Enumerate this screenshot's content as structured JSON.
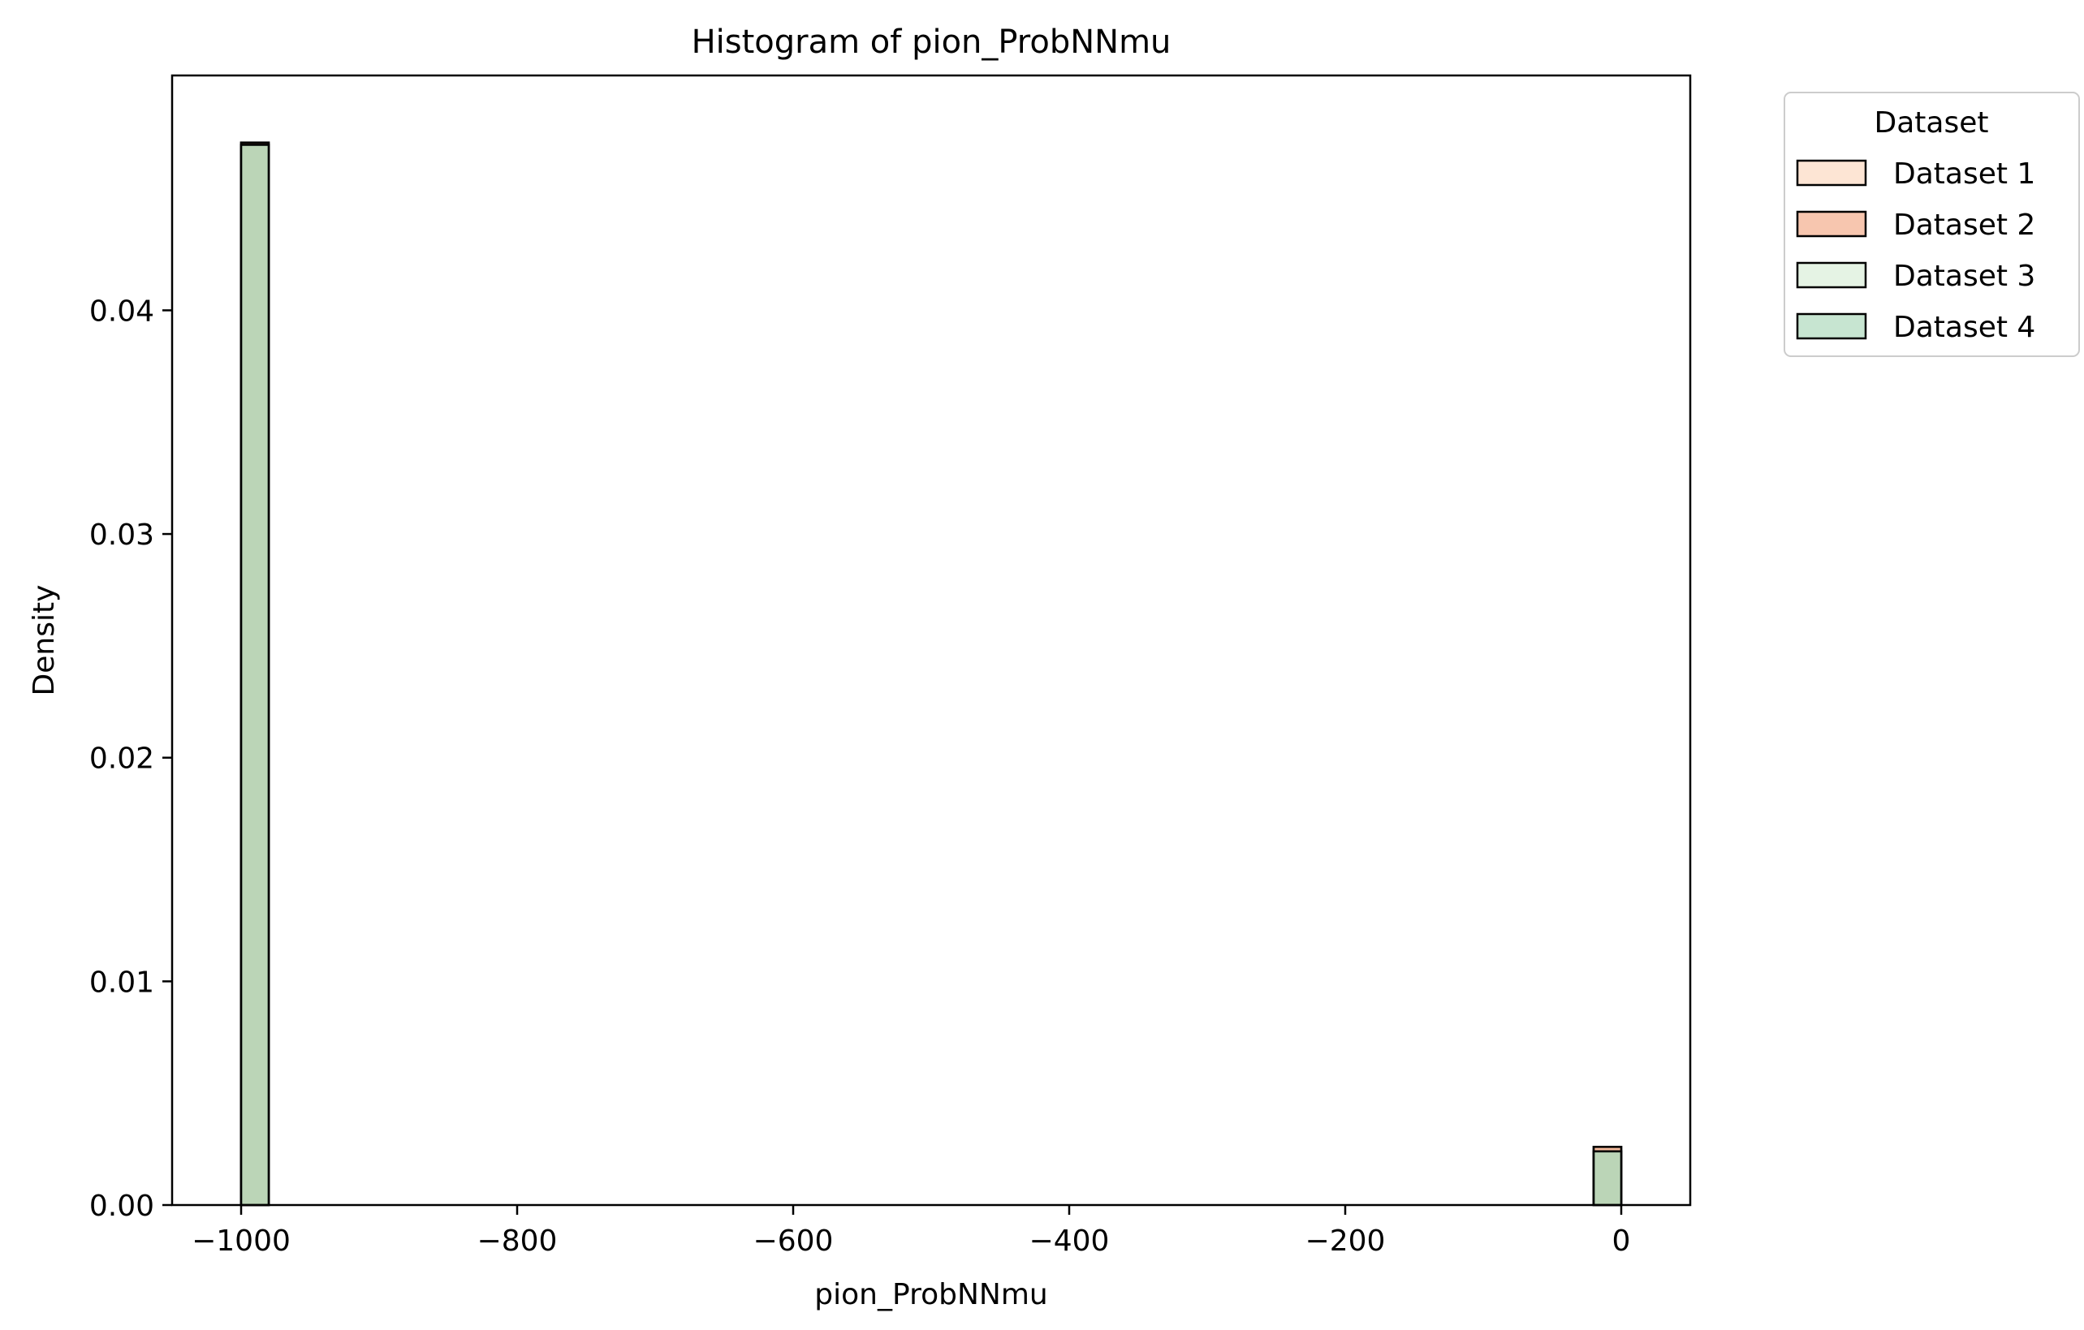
{
  "chart_data": {
    "type": "bar",
    "title": "Histogram of pion_ProbNNmu",
    "xlabel": "pion_ProbNNmu",
    "ylabel": "Density",
    "xlim": [
      -1050,
      50
    ],
    "ylim": [
      0,
      0.0505
    ],
    "xticks": [
      -1000,
      -800,
      -600,
      -400,
      -200,
      0
    ],
    "xtick_labels": [
      "−1000",
      "−800",
      "−600",
      "−400",
      "−200",
      "0"
    ],
    "yticks": [
      0,
      0.01,
      0.02,
      0.03,
      0.04
    ],
    "ytick_labels": [
      "0.00",
      "0.01",
      "0.02",
      "0.03",
      "0.04"
    ],
    "grid": false,
    "legend": {
      "title": "Dataset",
      "placement": "outside-top-right"
    },
    "bin_width": 20,
    "series": [
      {
        "name": "Dataset 1",
        "color": "#fbd3b8",
        "bins": [
          {
            "x0": -1000,
            "x1": -980,
            "density": 0.0475
          },
          {
            "x0": -20,
            "x1": 0,
            "density": 0.0026
          }
        ]
      },
      {
        "name": "Dataset 2",
        "color": "#f2a07a",
        "bins": [
          {
            "x0": -1000,
            "x1": -980,
            "density": 0.0475
          },
          {
            "x0": -20,
            "x1": 0,
            "density": 0.0026
          }
        ]
      },
      {
        "name": "Dataset 3",
        "color": "#d4ebd2",
        "bins": [
          {
            "x0": -1000,
            "x1": -980,
            "density": 0.0474
          },
          {
            "x0": -20,
            "x1": 0,
            "density": 0.0024
          }
        ]
      },
      {
        "name": "Dataset 4",
        "color": "#a2d4b3",
        "bins": [
          {
            "x0": -1000,
            "x1": -980,
            "density": 0.0474
          },
          {
            "x0": -20,
            "x1": 0,
            "density": 0.0024
          }
        ]
      }
    ]
  }
}
